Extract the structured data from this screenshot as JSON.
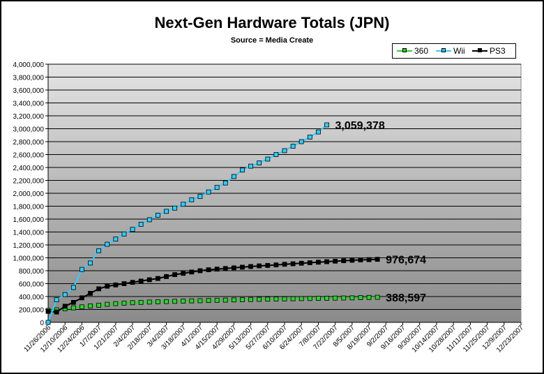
{
  "chart_data": {
    "type": "line",
    "title": "Next-Gen Hardware Totals (JPN)",
    "subtitle": "Source = Media Create",
    "xlabel": "",
    "ylabel": "",
    "ylim": [
      0,
      4000000
    ],
    "yticks": [
      "0",
      "200,000",
      "400,000",
      "600,000",
      "800,000",
      "1,000,000",
      "1,200,000",
      "1,400,000",
      "1,600,000",
      "1,800,000",
      "2,000,000",
      "2,200,000",
      "2,400,000",
      "2,600,000",
      "2,800,000",
      "3,000,000",
      "3,200,000",
      "3,400,000",
      "3,600,000",
      "3,800,000",
      "4,000,000"
    ],
    "xticks": [
      "11/26/2006",
      "12/10/2006",
      "12/24/2006",
      "1/7/2007",
      "1/21/2007",
      "2/4/2007",
      "2/18/2007",
      "3/4/2007",
      "3/18/2007",
      "4/1/2007",
      "4/15/2007",
      "4/29/2007",
      "5/13/2007",
      "5/27/2007",
      "6/10/2007",
      "6/24/2007",
      "7/8/2007",
      "7/22/2007",
      "8/5/2007",
      "8/19/2007",
      "9/2/2007",
      "9/16/2007",
      "9/30/2007",
      "10/14/2007",
      "10/28/2007",
      "11/11/2007",
      "11/25/2007",
      "12/9/2007",
      "12/23/2007"
    ],
    "x_total_weeks": 56,
    "legend_position": "top-right",
    "grid": true,
    "series": [
      {
        "name": "360",
        "color": "#33cc33",
        "values": [
          185000,
          195000,
          210000,
          225000,
          240000,
          255000,
          265000,
          280000,
          290000,
          298000,
          305000,
          310000,
          315000,
          318000,
          322000,
          326000,
          330000,
          333000,
          336000,
          339000,
          342000,
          345000,
          348000,
          351000,
          354000,
          357000,
          360000,
          362000,
          364000,
          366000,
          368000,
          370000,
          372000,
          374000,
          376000,
          378000,
          380000,
          383000,
          386000,
          388597
        ],
        "end_label": "388,597"
      },
      {
        "name": "Wii",
        "color": "#33ccff",
        "values": [
          0,
          350000,
          430000,
          540000,
          820000,
          920000,
          1110000,
          1210000,
          1290000,
          1370000,
          1440000,
          1520000,
          1590000,
          1660000,
          1720000,
          1770000,
          1830000,
          1900000,
          1950000,
          2020000,
          2090000,
          2160000,
          2260000,
          2360000,
          2420000,
          2470000,
          2530000,
          2600000,
          2660000,
          2730000,
          2800000,
          2870000,
          2950000,
          3059378
        ],
        "end_label": "3,059,378"
      },
      {
        "name": "PS3",
        "color": "#000000",
        "values": [
          170000,
          160000,
          250000,
          310000,
          380000,
          450000,
          520000,
          560000,
          580000,
          600000,
          620000,
          640000,
          660000,
          680000,
          710000,
          740000,
          760000,
          780000,
          800000,
          815000,
          825000,
          835000,
          845000,
          855000,
          865000,
          875000,
          882000,
          890000,
          900000,
          908000,
          916000,
          924000,
          932000,
          940000,
          948000,
          955000,
          962000,
          968000,
          972000,
          976674
        ],
        "end_label": "976,674"
      }
    ]
  }
}
